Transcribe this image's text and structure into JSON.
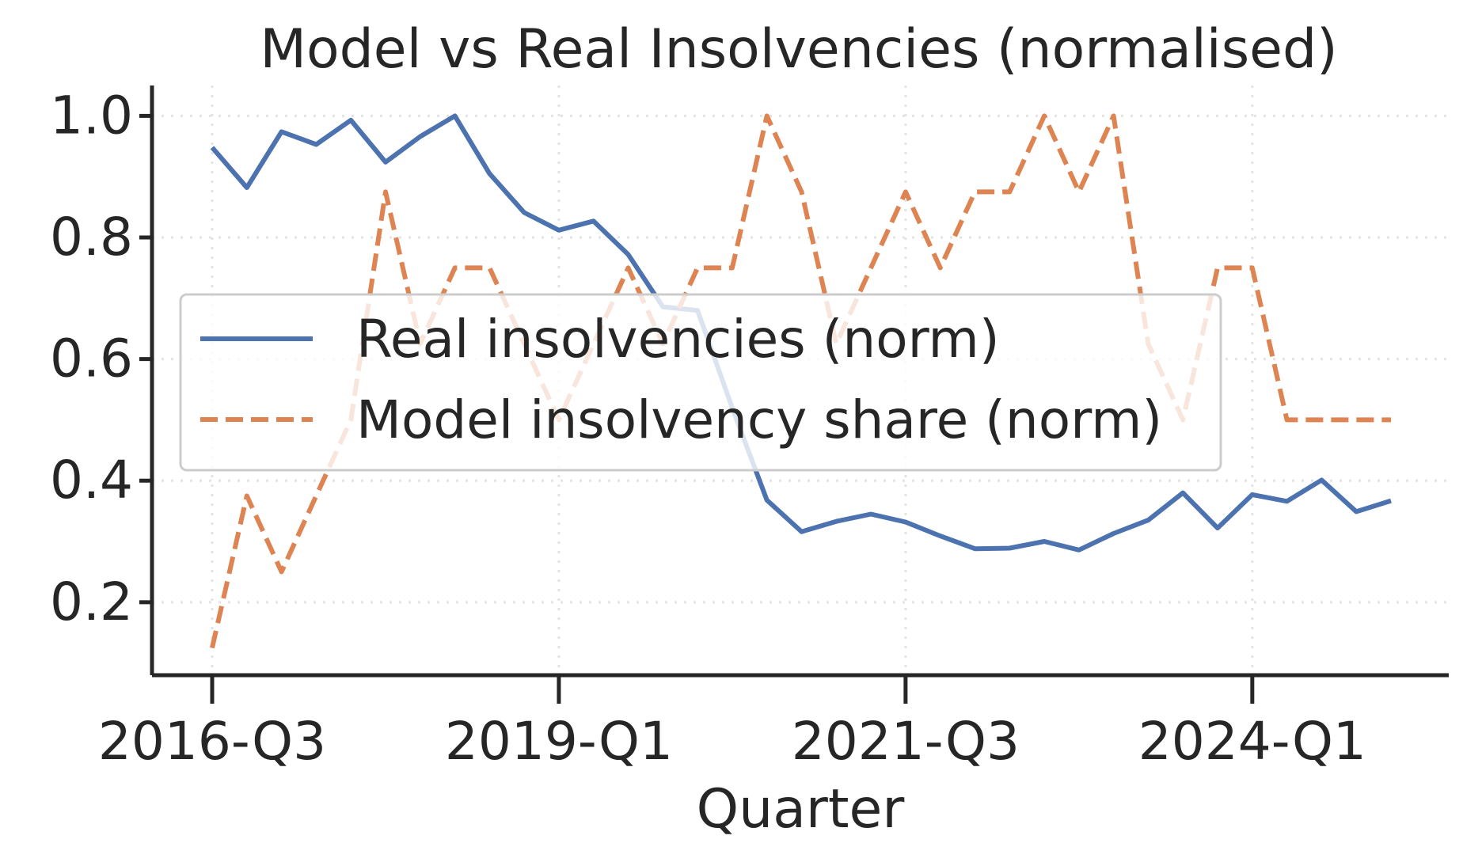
{
  "chart_data": {
    "type": "line",
    "title": "Model vs Real Insolvencies (normalised)",
    "xlabel": "Quarter",
    "ylabel": "",
    "x_tick_labels": [
      "2016-Q3",
      "2019-Q1",
      "2021-Q3",
      "2024-Q1"
    ],
    "y_ticks": [
      0.2,
      0.4,
      0.6,
      0.8,
      1.0
    ],
    "y_tick_labels": [
      "0.2",
      "0.4",
      "0.6",
      "0.8",
      "1.0"
    ],
    "ylim": [
      0.08,
      1.05
    ],
    "x": [
      "2016-Q3",
      "2016-Q4",
      "2017-Q1",
      "2017-Q2",
      "2017-Q3",
      "2017-Q4",
      "2018-Q1",
      "2018-Q2",
      "2018-Q3",
      "2018-Q4",
      "2019-Q1",
      "2019-Q2",
      "2019-Q3",
      "2019-Q4",
      "2020-Q1",
      "2020-Q2",
      "2020-Q3",
      "2020-Q4",
      "2021-Q1",
      "2021-Q2",
      "2021-Q3",
      "2021-Q4",
      "2022-Q1",
      "2022-Q2",
      "2022-Q3",
      "2022-Q4",
      "2023-Q1",
      "2023-Q2",
      "2023-Q3",
      "2023-Q4",
      "2024-Q1",
      "2024-Q2",
      "2024-Q3",
      "2024-Q4",
      "2025-Q1"
    ],
    "grid": true,
    "legend_position": "center-left",
    "series": [
      {
        "name": "Real insolvencies (norm)",
        "color": "#4c72b0",
        "style": "solid",
        "values": [
          0.948,
          0.882,
          0.974,
          0.953,
          0.993,
          0.924,
          0.966,
          1.0,
          0.905,
          0.841,
          0.812,
          0.827,
          0.772,
          0.686,
          0.68,
          0.52,
          0.368,
          0.316,
          0.333,
          0.345,
          0.332,
          0.309,
          0.288,
          0.289,
          0.3,
          0.286,
          0.313,
          0.335,
          0.38,
          0.322,
          0.377,
          0.366,
          0.401,
          0.349,
          0.367
        ]
      },
      {
        "name": "Model insolvency share (norm)",
        "color": "#dd8452",
        "style": "dashed",
        "values": [
          0.125,
          0.375,
          0.25,
          0.375,
          0.5,
          0.875,
          0.625,
          0.75,
          0.75,
          0.625,
          0.5,
          0.625,
          0.75,
          0.625,
          0.75,
          0.75,
          1.0,
          0.875,
          0.625,
          0.75,
          0.875,
          0.75,
          0.875,
          0.875,
          1.0,
          0.875,
          1.0,
          0.625,
          0.5,
          0.75,
          0.75,
          0.5,
          0.5,
          0.5,
          0.5
        ]
      }
    ]
  }
}
